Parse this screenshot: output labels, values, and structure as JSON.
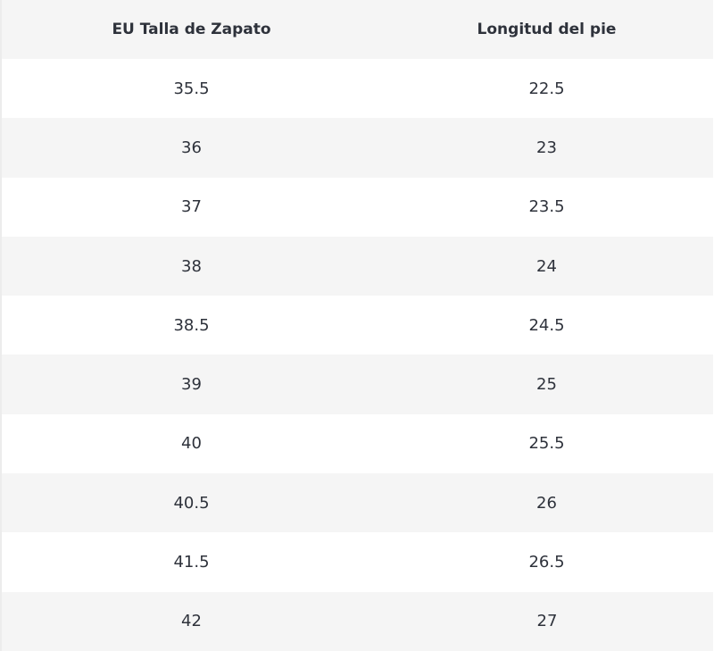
{
  "table": {
    "header": [
      "EU Talla de Zapato",
      "Longitud del pie"
    ],
    "rows": [
      [
        "35.5",
        "22.5"
      ],
      [
        "36",
        "23"
      ],
      [
        "37",
        "23.5"
      ],
      [
        "38",
        "24"
      ],
      [
        "38.5",
        "24.5"
      ],
      [
        "39",
        "25"
      ],
      [
        "40",
        "25.5"
      ],
      [
        "40.5",
        "26"
      ],
      [
        "41.5",
        "26.5"
      ],
      [
        "42",
        "27"
      ]
    ]
  }
}
